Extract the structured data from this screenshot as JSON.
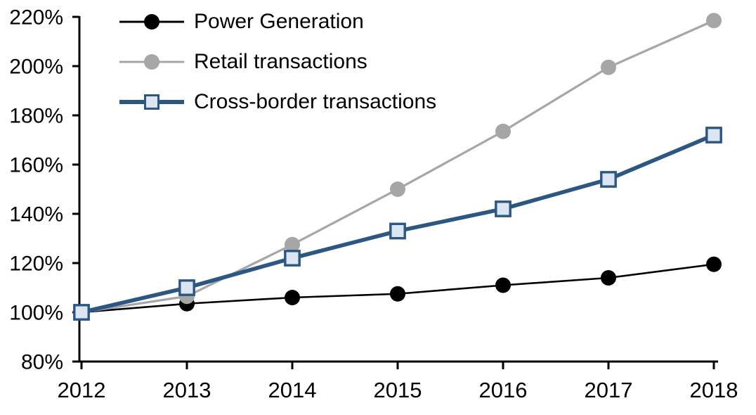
{
  "chart_data": {
    "type": "line",
    "title": "",
    "xlabel": "",
    "ylabel": "",
    "x_labels": [
      "2012",
      "2013",
      "2014",
      "2015",
      "2016",
      "2017",
      "2018"
    ],
    "series": [
      {
        "name": "Power Generation",
        "values": [
          100,
          103.5,
          106,
          107.5,
          111,
          114,
          119.5
        ],
        "color": "#000000",
        "marker": "circle",
        "marker_fill": "#000000",
        "line_width": 2.6
      },
      {
        "name": "Retail transactions",
        "values": [
          100,
          106.5,
          127.5,
          150,
          173.5,
          199.5,
          218.5
        ],
        "color": "#A6A6A6",
        "marker": "circle",
        "marker_fill": "#A6A6A6",
        "line_width": 3.2
      },
      {
        "name": "Cross-border transactions",
        "values": [
          100,
          110,
          122,
          133,
          142,
          154,
          172
        ],
        "color": "#2A5783",
        "marker": "square",
        "marker_fill": "#DCE6F1",
        "line_width": 5.6
      }
    ],
    "ylim": [
      80,
      220
    ],
    "ytick_step": 20,
    "ytick_labels": [
      "80%",
      "100%",
      "120%",
      "140%",
      "160%",
      "180%",
      "200%",
      "220%"
    ],
    "grid": false,
    "legend_position": "top-left",
    "axis_color": "#000000"
  }
}
